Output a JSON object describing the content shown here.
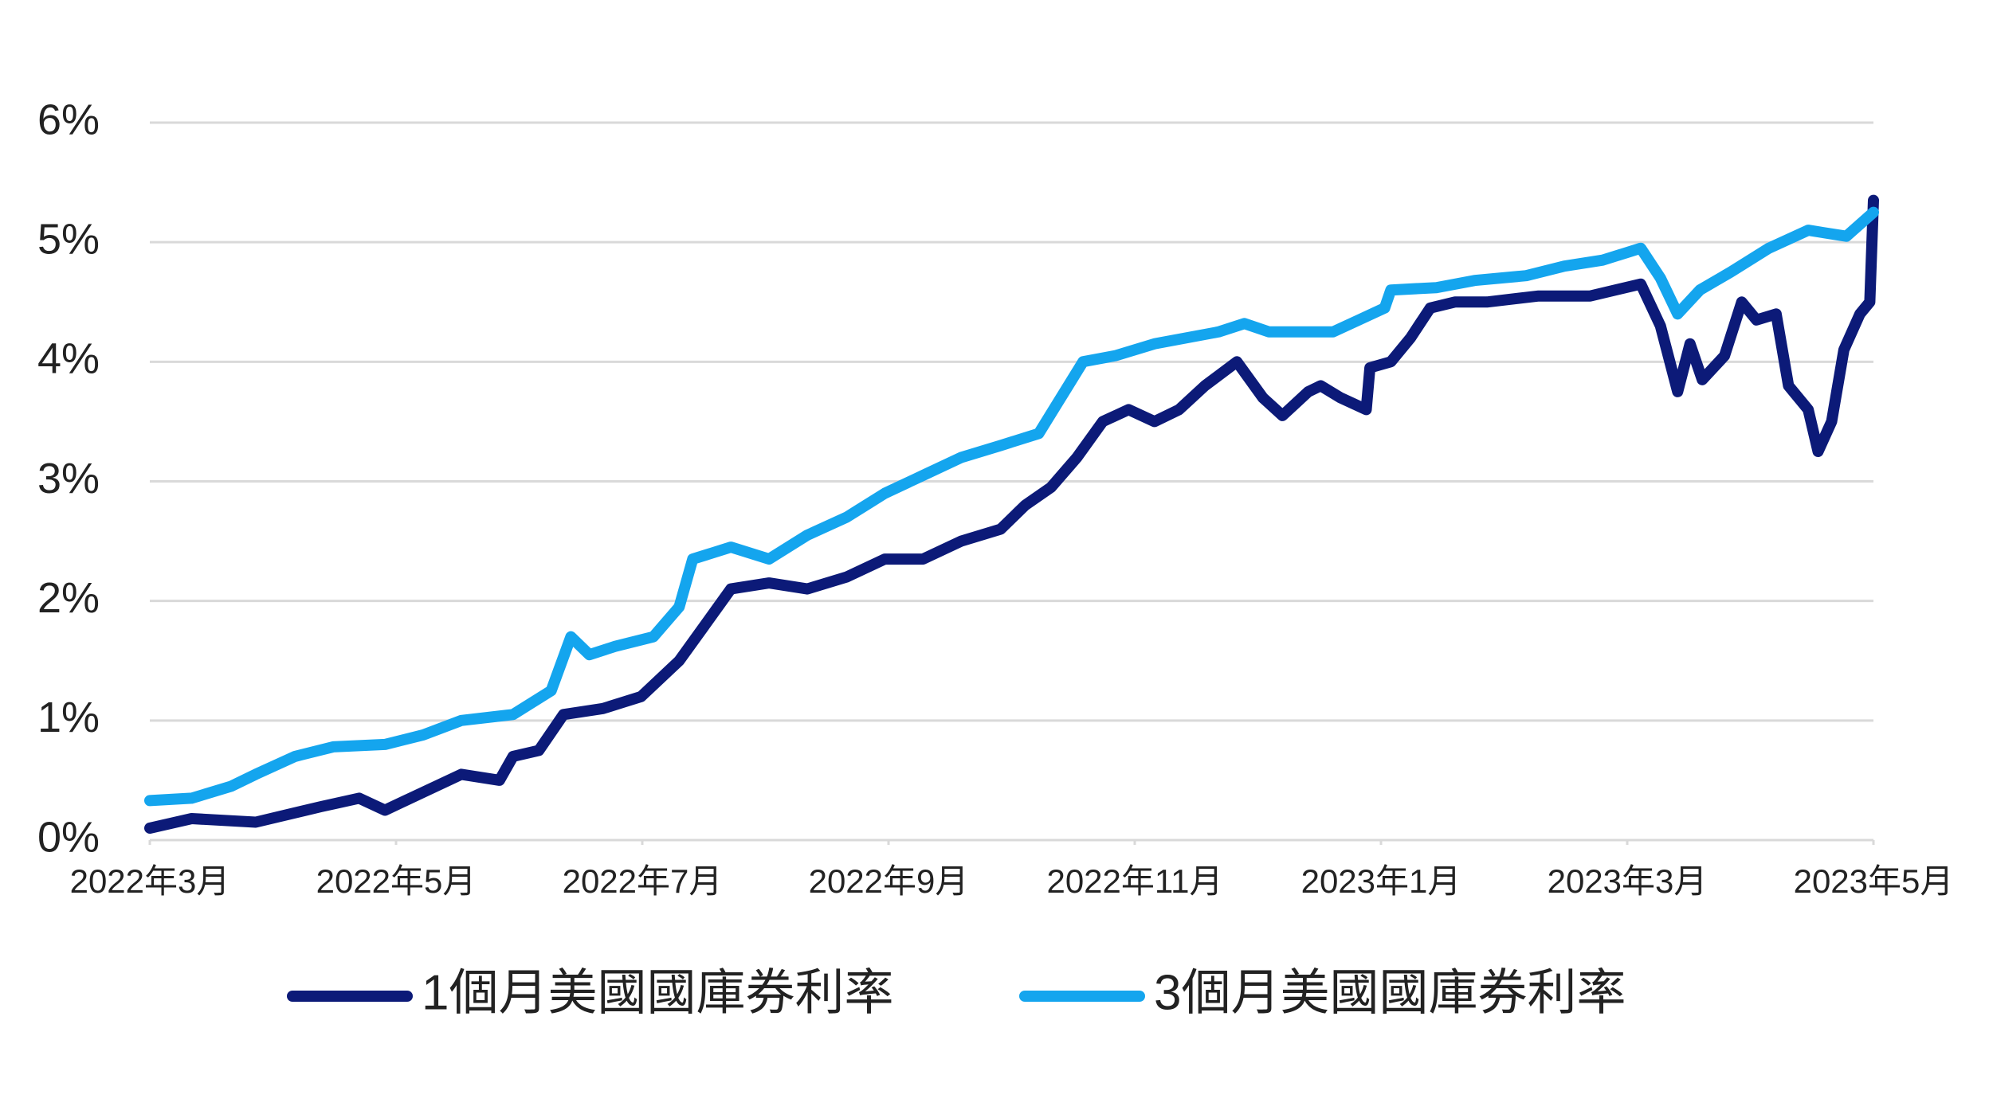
{
  "chart_data": {
    "type": "line",
    "xlim": [
      0,
      14
    ],
    "xticks": [
      {
        "value": 0,
        "label": "2022年3月"
      },
      {
        "value": 2,
        "label": "2022年5月"
      },
      {
        "value": 4,
        "label": "2022年7月"
      },
      {
        "value": 6,
        "label": "2022年9月"
      },
      {
        "value": 8,
        "label": "2022年11月"
      },
      {
        "value": 10,
        "label": "2023年1月"
      },
      {
        "value": 12,
        "label": "2023年3月"
      },
      {
        "value": 14,
        "label": "2023年5月"
      }
    ],
    "ylim": [
      0,
      6
    ],
    "yticks": [
      {
        "value": 0,
        "label": "0%"
      },
      {
        "value": 1,
        "label": "1%"
      },
      {
        "value": 2,
        "label": "2%"
      },
      {
        "value": 3,
        "label": "3%"
      },
      {
        "value": 4,
        "label": "4%"
      },
      {
        "value": 5,
        "label": "5%"
      },
      {
        "value": 6,
        "label": "6%"
      }
    ],
    "grid": true,
    "legend": "bottom",
    "series": [
      {
        "name": "1個月美國國庫券利率",
        "color": "#0c1a78",
        "x": [
          0,
          0.34,
          0.86,
          1.39,
          1.7,
          1.91,
          2.22,
          2.53,
          2.84,
          2.95,
          3.16,
          3.36,
          3.68,
          3.99,
          4.3,
          4.51,
          4.72,
          5.03,
          5.34,
          5.66,
          5.97,
          6.28,
          6.59,
          6.91,
          7.11,
          7.32,
          7.53,
          7.74,
          7.95,
          8.16,
          8.36,
          8.57,
          8.83,
          9.04,
          9.2,
          9.41,
          9.51,
          9.67,
          9.88,
          9.91,
          10.08,
          10.24,
          10.4,
          10.6,
          10.86,
          11.28,
          11.7,
          12.11,
          12.27,
          12.41,
          12.51,
          12.61,
          12.79,
          12.93,
          13.05,
          13.21,
          13.31,
          13.47,
          13.55,
          13.66,
          13.76,
          13.89,
          13.97,
          14
        ],
        "values": [
          0.1,
          0.18,
          0.15,
          0.28,
          0.35,
          0.25,
          0.4,
          0.55,
          0.5,
          0.7,
          0.75,
          1.05,
          1.1,
          1.2,
          1.5,
          1.8,
          2.1,
          2.15,
          2.1,
          2.2,
          2.35,
          2.35,
          2.5,
          2.6,
          2.8,
          2.95,
          3.2,
          3.5,
          3.6,
          3.5,
          3.6,
          3.8,
          4.0,
          3.7,
          3.55,
          3.75,
          3.8,
          3.7,
          3.6,
          3.95,
          4.0,
          4.2,
          4.45,
          4.5,
          4.5,
          4.55,
          4.55,
          4.65,
          4.3,
          3.75,
          4.15,
          3.85,
          4.05,
          4.5,
          4.35,
          4.4,
          3.8,
          3.6,
          3.25,
          3.5,
          4.1,
          4.4,
          4.5,
          5.35
        ]
      },
      {
        "name": "3個月美國國庫券利率",
        "color": "#14a5ee",
        "x": [
          0,
          0.34,
          0.66,
          0.86,
          1.18,
          1.49,
          1.91,
          2.22,
          2.53,
          2.95,
          3.26,
          3.42,
          3.57,
          3.78,
          4.09,
          4.3,
          4.41,
          4.72,
          5.03,
          5.34,
          5.66,
          5.97,
          6.28,
          6.59,
          6.91,
          7.22,
          7.43,
          7.58,
          7.84,
          8.16,
          8.68,
          8.89,
          9.09,
          9.61,
          9.82,
          10.03,
          10.08,
          10.45,
          10.76,
          11.18,
          11.49,
          11.8,
          12.11,
          12.27,
          12.41,
          12.59,
          12.84,
          13.15,
          13.47,
          13.78,
          14
        ],
        "values": [
          0.33,
          0.35,
          0.45,
          0.55,
          0.7,
          0.78,
          0.8,
          0.88,
          1.0,
          1.05,
          1.25,
          1.7,
          1.55,
          1.62,
          1.7,
          1.95,
          2.35,
          2.45,
          2.35,
          2.55,
          2.7,
          2.9,
          3.05,
          3.2,
          3.3,
          3.4,
          3.75,
          4.0,
          4.05,
          4.15,
          4.25,
          4.32,
          4.25,
          4.25,
          4.35,
          4.45,
          4.6,
          4.62,
          4.68,
          4.72,
          4.8,
          4.85,
          4.95,
          4.7,
          4.4,
          4.6,
          4.75,
          4.95,
          5.1,
          5.05,
          5.25
        ]
      }
    ]
  }
}
